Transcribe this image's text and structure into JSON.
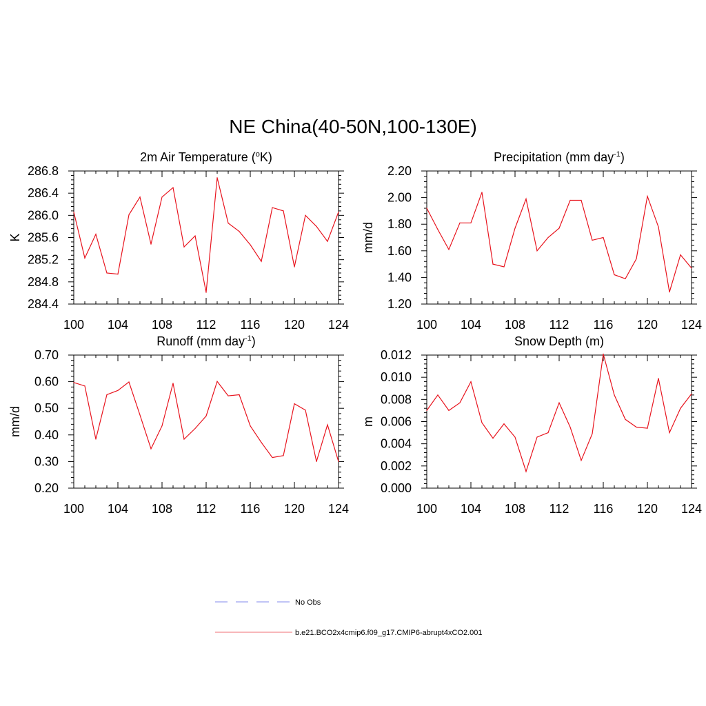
{
  "figure": {
    "title": "NE China(40-50N,100-130E)",
    "series_color": "#e8141e",
    "obs_color": "#9aa0f0"
  },
  "legend": {
    "obs_label": "No Obs",
    "model_label": "b.e21.BCO2x4cmip6.f09_g17.CMIP6-abrupt4xCO2.001"
  },
  "chart_data": [
    {
      "type": "line",
      "title": "2m Air Temperature (",
      "title_sup": "o",
      "title_tail": "K)",
      "ylabel": "K",
      "xlabel": "",
      "xlim": [
        100,
        124
      ],
      "ylim": [
        284.4,
        286.8
      ],
      "xticks": [
        "100",
        "104",
        "108",
        "112",
        "116",
        "120",
        "124"
      ],
      "yticks": [
        "284.4",
        "284.8",
        "285.2",
        "285.6",
        "286.0",
        "286.4",
        "286.8"
      ],
      "x": [
        100,
        101,
        102,
        103,
        104,
        105,
        106,
        107,
        108,
        109,
        110,
        111,
        112,
        113,
        114,
        115,
        116,
        117,
        118,
        119,
        120,
        121,
        122,
        123,
        124
      ],
      "values": [
        286.06,
        285.23,
        285.66,
        284.96,
        284.94,
        286.01,
        286.33,
        285.48,
        286.33,
        286.5,
        285.43,
        285.63,
        284.61,
        286.68,
        285.86,
        285.71,
        285.47,
        285.17,
        286.14,
        286.08,
        285.07,
        286.0,
        285.8,
        285.53,
        286.06
      ]
    },
    {
      "type": "line",
      "title": "Precipitation (mm day",
      "title_sup": "-1",
      "title_tail": ")",
      "ylabel": "mm/d",
      "xlabel": "",
      "xlim": [
        100,
        124
      ],
      "ylim": [
        1.2,
        2.2
      ],
      "xticks": [
        "100",
        "104",
        "108",
        "112",
        "116",
        "120",
        "124"
      ],
      "yticks": [
        "1.20",
        "1.40",
        "1.60",
        "1.80",
        "2.00",
        "2.20"
      ],
      "x": [
        100,
        101,
        102,
        103,
        104,
        105,
        106,
        107,
        108,
        109,
        110,
        111,
        112,
        113,
        114,
        115,
        116,
        117,
        118,
        119,
        120,
        121,
        122,
        123,
        124
      ],
      "values": [
        1.92,
        1.76,
        1.61,
        1.81,
        1.81,
        2.04,
        1.5,
        1.48,
        1.77,
        1.99,
        1.6,
        1.7,
        1.77,
        1.98,
        1.98,
        1.68,
        1.7,
        1.42,
        1.39,
        1.54,
        2.01,
        1.78,
        1.29,
        1.57,
        1.47
      ]
    },
    {
      "type": "line",
      "title": "Runoff (mm day",
      "title_sup": "-1",
      "title_tail": ")",
      "ylabel": "mm/d",
      "xlabel": "",
      "xlim": [
        100,
        124
      ],
      "ylim": [
        0.2,
        0.7
      ],
      "xticks": [
        "100",
        "104",
        "108",
        "112",
        "116",
        "120",
        "124"
      ],
      "yticks": [
        "0.20",
        "0.30",
        "0.40",
        "0.50",
        "0.60",
        "0.70"
      ],
      "x": [
        100,
        101,
        102,
        103,
        104,
        105,
        106,
        107,
        108,
        109,
        110,
        111,
        112,
        113,
        114,
        115,
        116,
        117,
        118,
        119,
        120,
        121,
        122,
        123,
        124
      ],
      "values": [
        0.597,
        0.584,
        0.384,
        0.551,
        0.567,
        0.599,
        0.475,
        0.348,
        0.434,
        0.594,
        0.384,
        0.424,
        0.471,
        0.601,
        0.547,
        0.551,
        0.434,
        0.372,
        0.315,
        0.322,
        0.517,
        0.493,
        0.3,
        0.438,
        0.3
      ]
    },
    {
      "type": "line",
      "title": "Snow Depth (m)",
      "title_sup": "",
      "title_tail": "",
      "ylabel": "m",
      "xlabel": "",
      "xlim": [
        100,
        124
      ],
      "ylim": [
        0.0,
        0.012
      ],
      "xticks": [
        "100",
        "104",
        "108",
        "112",
        "116",
        "120",
        "124"
      ],
      "yticks": [
        "0.000",
        "0.002",
        "0.004",
        "0.006",
        "0.008",
        "0.010",
        "0.012"
      ],
      "x": [
        100,
        101,
        102,
        103,
        104,
        105,
        106,
        107,
        108,
        109,
        110,
        111,
        112,
        113,
        114,
        115,
        116,
        117,
        118,
        119,
        120,
        121,
        122,
        123,
        124
      ],
      "values": [
        0.007,
        0.0084,
        0.007,
        0.0077,
        0.0096,
        0.0059,
        0.0045,
        0.0058,
        0.0046,
        0.0015,
        0.0046,
        0.005,
        0.0077,
        0.0055,
        0.0025,
        0.0049,
        0.0121,
        0.0084,
        0.0062,
        0.0055,
        0.0054,
        0.0099,
        0.005,
        0.0072,
        0.0085
      ]
    }
  ]
}
